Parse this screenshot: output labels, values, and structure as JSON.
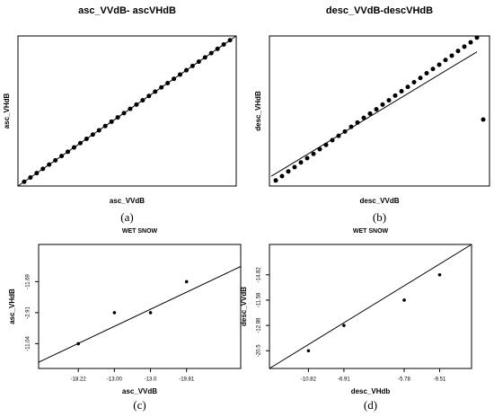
{
  "chart_data": [
    {
      "type": "scatter",
      "title": "asc_VVdB- ascVHdB",
      "x_label": "asc_VVdB",
      "y_label": "asc_VHdB",
      "panel": "(a)",
      "x": [
        1,
        2,
        3,
        4,
        5,
        6,
        7,
        8,
        9,
        10,
        11,
        12,
        13,
        14,
        15,
        16,
        17,
        18,
        19,
        20,
        21,
        22,
        23,
        24,
        25,
        26,
        27,
        28,
        29,
        30,
        31,
        32,
        33,
        34
      ],
      "y": [
        1,
        2,
        3,
        4,
        5,
        6,
        7,
        8,
        9,
        10,
        11,
        12,
        13,
        14,
        15,
        16,
        17,
        18,
        19,
        20,
        21,
        22,
        23,
        24,
        25,
        26,
        27,
        28,
        29,
        30,
        31,
        32,
        33,
        34
      ],
      "xlim": [
        0,
        35
      ],
      "ylim": [
        0,
        35
      ],
      "fit_line": {
        "x": [
          0,
          35
        ],
        "y": [
          0,
          35
        ]
      }
    },
    {
      "type": "scatter",
      "title": "desc_VVdB-descVHdB",
      "x_label": "desc_VVdB",
      "y_label": "desc_VHdB",
      "panel": "(b)",
      "x": [
        1,
        2,
        3,
        4,
        5,
        6,
        7,
        8,
        9,
        10,
        11,
        12,
        13,
        14,
        15,
        16,
        17,
        18,
        19,
        20,
        21,
        22,
        23,
        24,
        25,
        26,
        27,
        28,
        29,
        30,
        31,
        32,
        33,
        34
      ],
      "y": [
        1.3,
        2.3,
        3.4,
        4.4,
        5.5,
        6.5,
        7.5,
        8.6,
        9.6,
        10.7,
        11.7,
        12.7,
        13.8,
        14.8,
        15.9,
        16.9,
        17.9,
        19,
        20,
        21.1,
        22.1,
        23.1,
        24.2,
        25.2,
        26.3,
        27.3,
        28.3,
        29.4,
        30.4,
        31.5,
        32.5,
        33.5,
        34.6,
        15.5
      ],
      "xlim": [
        0,
        35
      ],
      "ylim": [
        0,
        35
      ],
      "fit_line": {
        "x": [
          0.3,
          33
        ],
        "y": [
          2.3,
          31.3
        ]
      }
    },
    {
      "type": "scatter",
      "title": "WET SNOW",
      "x_label": "asc_VVdB",
      "y_label": "asc_VHdB",
      "panel": "(c)",
      "x": [
        1,
        2,
        3,
        4
      ],
      "y": [
        1,
        2,
        2,
        3
      ],
      "xlim": [
        -0.1,
        5.5
      ],
      "ylim": [
        0.2,
        4.2
      ],
      "xticks": [
        {
          "value": 1,
          "label": "-18.22"
        },
        {
          "value": 2,
          "label": "-13.00"
        },
        {
          "value": 3,
          "label": "-13.0"
        },
        {
          "value": 4,
          "label": "-19.81"
        }
      ],
      "yticks": [
        {
          "value": 1,
          "label": "-11.04"
        },
        {
          "value": 2,
          "label": "-2.91"
        },
        {
          "value": 3,
          "label": "-11.69"
        }
      ],
      "fit_line": {
        "x": [
          -0.1,
          5.5
        ],
        "y": [
          0.4,
          3.49
        ]
      }
    },
    {
      "type": "scatter",
      "title": "WET SNOW",
      "x_label": "desc_VHdb",
      "y_label": "desc_VVdB",
      "panel": "(d)",
      "x": [
        1,
        2,
        3.7,
        4.7
      ],
      "y": [
        1,
        2,
        3,
        4
      ],
      "xlim": [
        -0.1,
        5.6
      ],
      "ylim": [
        0.3,
        5.2
      ],
      "xticks": [
        {
          "value": 1,
          "label": "-10.82"
        },
        {
          "value": 2,
          "label": "-6.91"
        },
        {
          "value": 3.7,
          "label": "-5.78"
        },
        {
          "value": 4.7,
          "label": "-9.51"
        }
      ],
      "yticks": [
        {
          "value": 1,
          "label": "-20.5"
        },
        {
          "value": 2,
          "label": "-12.88"
        },
        {
          "value": 3,
          "label": "-11.58"
        },
        {
          "value": 4,
          "label": "-14.82"
        }
      ],
      "fit_line": {
        "x": [
          -0.1,
          5.6
        ],
        "y": [
          0.3,
          5.2
        ]
      }
    }
  ]
}
